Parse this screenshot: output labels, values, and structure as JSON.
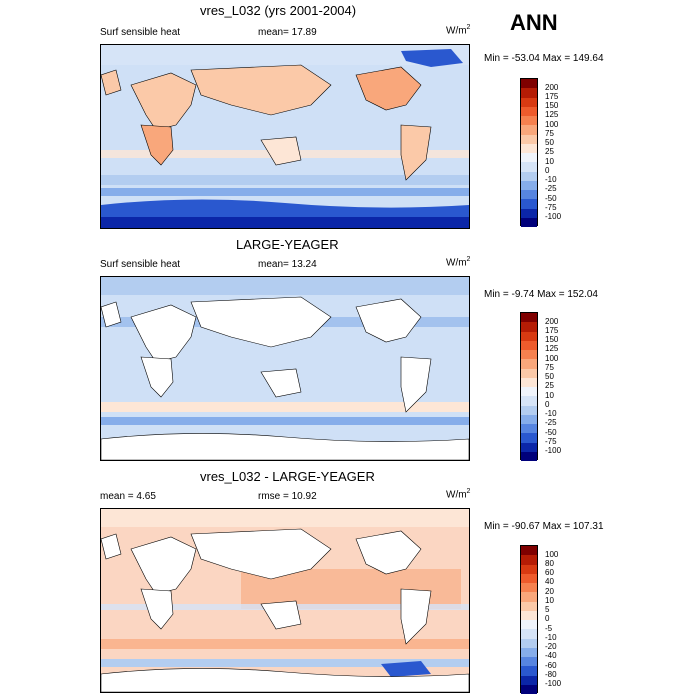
{
  "season": "ANN",
  "panels": [
    {
      "title": "vres_L032 (yrs 2001-2004)",
      "left_label": "Surf sensible heat",
      "center_label": "mean=  17.89",
      "units": "W/m",
      "units_sup": "2",
      "minmax": "Min = -53.04 Max = 149.64",
      "levels": [
        "200",
        "175",
        "150",
        "125",
        "100",
        "75",
        "50",
        "25",
        "10",
        "0",
        "-10",
        "-25",
        "-50",
        "-75",
        "-100"
      ],
      "land_visible": true
    },
    {
      "title": "LARGE-YEAGER",
      "left_label": "Surf sensible heat",
      "center_label": "mean=  13.24",
      "units": "W/m",
      "units_sup": "2",
      "minmax": "Min =  -9.74 Max = 152.04",
      "levels": [
        "200",
        "175",
        "150",
        "125",
        "100",
        "75",
        "50",
        "25",
        "10",
        "0",
        "-10",
        "-25",
        "-50",
        "-75",
        "-100"
      ],
      "land_visible": false
    },
    {
      "title": "vres_L032 - LARGE-YEAGER",
      "left_label": "mean =   4.65",
      "center_label": "rmse =  10.92",
      "units": "W/m",
      "units_sup": "2",
      "minmax": "Min = -90.67 Max = 107.31",
      "levels": [
        "100",
        "80",
        "60",
        "40",
        "20",
        "10",
        "5",
        "0",
        "-5",
        "-10",
        "-20",
        "-40",
        "-60",
        "-80",
        "-100"
      ],
      "land_visible": false
    }
  ],
  "colors": {
    "scale": [
      "#7f0000",
      "#b51c05",
      "#d83a12",
      "#ee5b2c",
      "#f6814f",
      "#f9a77b",
      "#fbc9a8",
      "#fde6d6",
      "#f0f4fb",
      "#d6e4f7",
      "#b3cdf0",
      "#86adea",
      "#5785e0",
      "#2a58cf",
      "#0b26a8",
      "#00007a"
    ],
    "ocean_light": "#cfe0f6",
    "ocean_pink": "#fbd6c2",
    "antarctic": "#2a58cf"
  }
}
